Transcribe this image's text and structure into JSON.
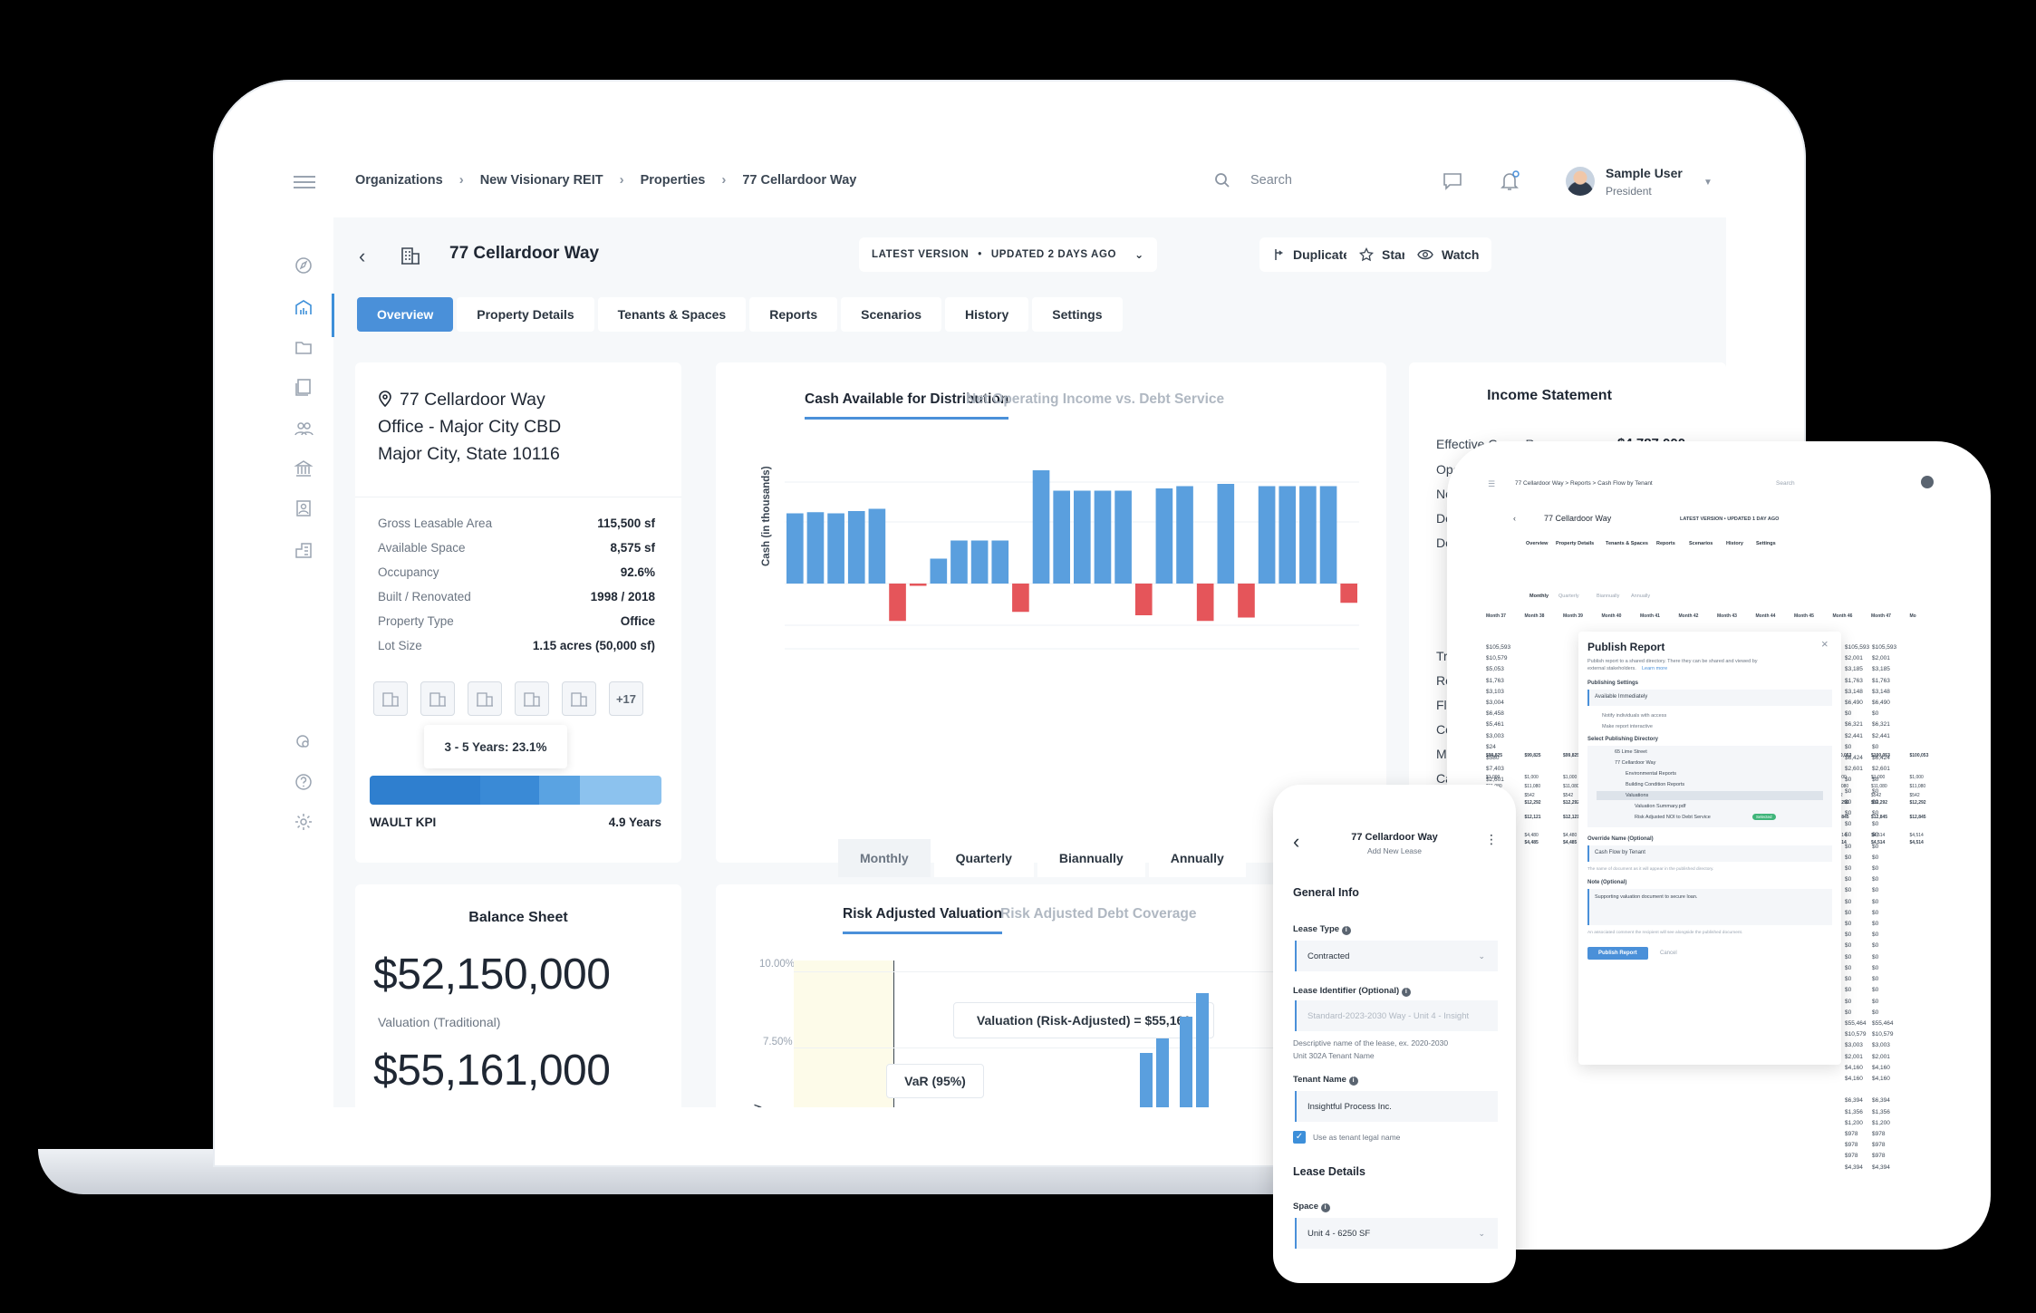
{
  "topbar": {
    "breadcrumbs": [
      "Organizations",
      "New Visionary REIT",
      "Properties",
      "77 Cellardoor Way"
    ],
    "search_placeholder": "Search",
    "user_name": "Sample User",
    "user_role": "President"
  },
  "header": {
    "title": "77 Cellardoor Way",
    "version_label": "LATEST VERSION",
    "version_dot": "•",
    "updated_label": "UPDATED 2 DAYS AGO",
    "duplicate": "Duplicate",
    "star": "Star",
    "watch": "Watch"
  },
  "tabs": [
    "Overview",
    "Property Details",
    "Tenants & Spaces",
    "Reports",
    "Scenarios",
    "History",
    "Settings"
  ],
  "property": {
    "address_line1": "77 Cellardoor Way",
    "address_line2": "Office - Major City CBD",
    "address_line3": "Major City, State 10116",
    "rows": [
      {
        "k": "Gross Leasable Area",
        "v": "115,500 sf"
      },
      {
        "k": "Available Space",
        "v": "8,575 sf"
      },
      {
        "k": "Occupancy",
        "v": "92.6%"
      },
      {
        "k": "Built / Renovated",
        "v": "1998 / 2018"
      },
      {
        "k": "Property Type",
        "v": "Office"
      },
      {
        "k": "Lot Size",
        "v": "1.15 acres (50,000 sf)"
      }
    ],
    "more_photos": "+17",
    "tooltip": "3 - 5 Years: 23.1%",
    "wault_label": "WAULT KPI",
    "wault_value": "4.9 Years",
    "wault_segments": [
      {
        "color": "#2f7fcf",
        "share": 0.38
      },
      {
        "color": "#3a8ad6",
        "share": 0.2
      },
      {
        "color": "#5aa3e2",
        "share": 0.14
      },
      {
        "color": "#8cc2ee",
        "share": 0.28
      }
    ]
  },
  "cash_chart": {
    "tab_active": "Cash Available for Distribution",
    "tab_inactive": "Net Operating Income vs. Debt Service",
    "periods": [
      "Monthly",
      "Quarterly",
      "Biannually",
      "Annually"
    ],
    "selected_period": "Monthly"
  },
  "chart_data": {
    "type": "bar",
    "title": "Cash Available for Distribution",
    "ylabel": "Cash (in thousands)",
    "grid": true,
    "series": [
      {
        "values": [
          62,
          63,
          62,
          64,
          66,
          -33,
          -2,
          22,
          38,
          38,
          38,
          -25,
          100,
          82,
          82,
          82,
          82,
          -28,
          84,
          86,
          -33,
          88,
          -30,
          86,
          86,
          86,
          86,
          -17
        ]
      }
    ],
    "colors": {
      "positive": "#5a9fde",
      "negative": "#e5555a"
    }
  },
  "income": {
    "title": "Income Statement",
    "rows": [
      {
        "k": "Effective Gross Revenue",
        "v": "$4,787,000"
      },
      {
        "k": "Operat",
        "v": ""
      },
      {
        "k": "Net C",
        "v": ""
      },
      {
        "k": "Debt",
        "v": ""
      },
      {
        "k": "Debt",
        "v": ""
      }
    ],
    "lower_rows": [
      "Tradi",
      "Reco",
      "Flexi",
      "Cowo",
      "Meeti",
      "Cafe"
    ]
  },
  "balance": {
    "title": "Balance Sheet",
    "traditional": "$52,150,000",
    "traditional_label": "Valuation (Traditional)",
    "risk_adjusted": "$55,161,000"
  },
  "risk": {
    "tab_active": "Risk Adjusted Valuation",
    "tab_inactive": "Risk Adjusted Debt Coverage",
    "tick_top": "10.00%",
    "tick_mid": "7.50%",
    "callout_valuation": "Valuation (Risk-Adjusted) = $55,161",
    "callout_var": "VaR (95%)",
    "ylabel_fragment": "ncy"
  },
  "tablet": {
    "crumbs": "77 Cellardoor Way  >  Reports  >  Cash Flow by Tenant",
    "search": "Search",
    "title": "77 Cellardoor Way",
    "version": "LATEST VERSION  •  UPDATED 1 DAY AGO",
    "tabs": [
      "Overview",
      "Property Details",
      "Tenants & Spaces",
      "Reports",
      "Scenarios",
      "History",
      "Settings"
    ],
    "period_tabs": [
      "Monthly",
      "Quarterly",
      "Biannually",
      "Annually"
    ],
    "months": [
      "Month 37",
      "Month 38",
      "Month 39",
      "Month 40",
      "Month 41",
      "Month 42",
      "Month 43",
      "Month 44",
      "Month 45",
      "Month 46",
      "Month 47",
      "Mo"
    ],
    "modal": {
      "title": "Publish Report",
      "desc": "Publish report to a shared directory. There they can be shared and viewed by",
      "desc2": "external stakeholders.",
      "learn": "Learn more",
      "settings_label": "Publishing Settings",
      "settings_value": "Available Immediately",
      "notify": "Notify individuals with access",
      "interactive": "Make report interactive",
      "dir_label": "Select Publishing Directory",
      "tree": [
        "65 Lime Street",
        "77 Cellardoor Way",
        "Environmental Reports",
        "Building Condition Reports",
        "Valuations",
        "Valuation Summary.pdf",
        "Risk Adjusted NOI to Debt Service"
      ],
      "tag": "Selected",
      "override_label": "Override Name (Optional)",
      "override_value": "Cash Flow by Tenant",
      "override_hint": "The name of document as it will appear in the published directory.",
      "note_label": "Note (Optional)",
      "note_value": "Supporting valuation document to secure loan.",
      "note_hint": "An associated comment the recipient will see alongside the published document.",
      "publish": "Publish Report",
      "cancel": "Cancel"
    },
    "left_numbers": "$105,593\n$10,579\n$5,053\n$1,763\n$3,103\n$3,004\n$6,458\n$5,461\n$3,003\n$24\n$580\n$7,403\n$2,601\n$2,001\n$2,001\n$7,403\n$2,603\n$1,200\n$30\n$30\n$30\n$30\n$30\n$30\n$30\n$30\n$30\n$30\n$30\n$30\n$30\n$30\n$30\n$30\n$55,464\n$10,579\n$3,003\n$2,001\n$4,363\n$59,409\n\n$6,394\n$1,356\n$1,200\n$978\n$978\n$978\n$4,394",
    "right_numbers": "$105,593\n$2,001\n$3,185\n$1,763\n$3,148\n$6,490\n$0\n$6,321\n$2,441\n$0\n$6,424\n$2,601\n$0\n$0\n$0\n$0\n$0\n$0\n$0\n$0\n$0\n$0\n$0\n$0\n$0\n$0\n$0\n$0\n$0\n$0\n$0\n$0\n$0\n$0\n$55,464\n$10,579\n$3,003\n$2,001\n$4,160\n$4,160\n\n$6,394\n$1,356\n$1,200\n$978\n$978\n$978\n$4,394",
    "bottom_rows": [
      [
        "$99,825",
        "$99,825",
        "$99,825",
        "$99,825",
        "$99,825",
        "$99,825",
        "$100,053",
        "$100,053",
        "$100,053",
        "$100,053",
        "$100,053",
        "$100,053"
      ],
      [
        "$1,000",
        "$1,000",
        "$1,000",
        "$1,000",
        "$1,000",
        "$1,000",
        "$1,000",
        "$1,000",
        "$1,000",
        "$1,000",
        "$1,000",
        "$1,000"
      ],
      [
        "$11,080",
        "$11,080",
        "$11,080",
        "$11,080",
        "$11,080",
        "$11,080",
        "$11,080",
        "$11,080",
        "$11,080",
        "$11,080",
        "$11,080",
        "$11,080"
      ],
      [
        "$542",
        "$542",
        "$542",
        "$542",
        "$542",
        "$542",
        "$542",
        "$542",
        "$542",
        "$542",
        "$542",
        "$542"
      ],
      [
        "$12,292",
        "$12,292",
        "$12,292",
        "$12,292",
        "$12,292",
        "$12,292",
        "$12,292",
        "$12,292",
        "$12,292",
        "$12,292",
        "$12,292",
        "$12,292"
      ],
      [
        "$12,121",
        "$12,121",
        "$12,121",
        "$12,121",
        "$12,121",
        "$12,121",
        "$12,845",
        "$12,845",
        "$12,845",
        "$12,845",
        "$12,845",
        "$12,845"
      ],
      [
        "$4,480",
        "$4,480",
        "$4,480",
        "$4,480",
        "$4,480",
        "$4,480",
        "$4,514",
        "$4,514",
        "$4,514",
        "$4,514",
        "$4,514",
        "$4,514"
      ],
      [
        "$4,485",
        "$4,485",
        "$4,485",
        "$4,485",
        "$4,485",
        "$4,485",
        "$4,514",
        "$4,514",
        "$4,514",
        "$4,514",
        "$4,514",
        "$4,514"
      ]
    ]
  },
  "phone": {
    "title": "77 Cellardoor Way",
    "subtitle": "Add New Lease",
    "general_info": "General Info",
    "lease_type_label": "Lease Type",
    "lease_type_value": "Contracted",
    "lease_id_label": "Lease Identifier (Optional)",
    "lease_id_placeholder": "Standard-2023-2030 Way - Unit 4 - Insight",
    "lease_id_hint": "Descriptive name of the lease, ex. 2020-2030",
    "lease_id_hint2": "Unit 302A Tenant Name",
    "tenant_label": "Tenant Name",
    "tenant_value": "Insightful Process Inc.",
    "checkbox_label": "Use as tenant legal name",
    "lease_details": "Lease Details",
    "space_label": "Space",
    "space_value": "Unit 4 - 6250 SF"
  },
  "colors": {
    "accent": "#4a90d9",
    "bar_blue": "#5a9fde",
    "bar_red": "#e5555a",
    "background": "#f6f8fa"
  },
  "icons": [
    "menu-icon",
    "compass-icon",
    "building-chart-icon",
    "folder-icon",
    "reports-icon",
    "users-icon",
    "bank-icon",
    "portrait-icon",
    "property-icon",
    "settings-search-icon",
    "help-icon",
    "gear-icon",
    "search-icon",
    "chat-icon",
    "bell-icon",
    "back-icon",
    "building-icon",
    "duplicate-icon",
    "star-icon",
    "eye-icon",
    "pin-icon",
    "close-icon",
    "kebab-icon"
  ]
}
